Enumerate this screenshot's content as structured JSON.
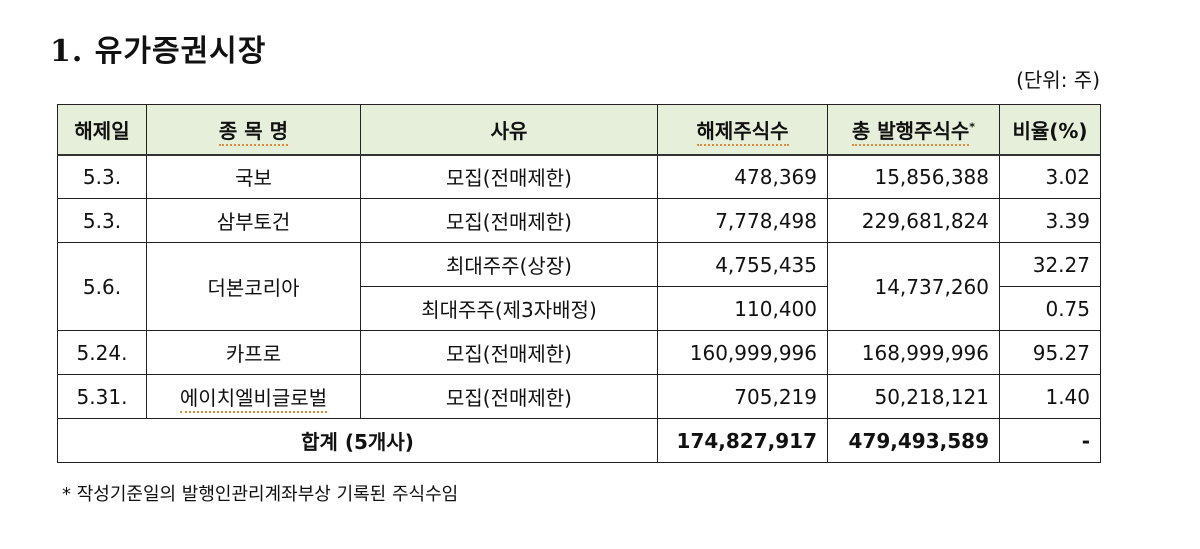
{
  "title": "1. 유가증권시장",
  "unit": "(단위: 주)",
  "headers": {
    "date": "해제일",
    "name": "종 목 명",
    "reason": "사유",
    "released": "해제주식수",
    "total": "총 발행주식수",
    "total_mark": "*",
    "ratio": "비율(%)"
  },
  "rows": [
    {
      "date": "5.3.",
      "name": "국보",
      "reason": "모집(전매제한)",
      "released": "478,369",
      "total": "15,856,388",
      "ratio": "3.02"
    },
    {
      "date": "5.3.",
      "name": "삼부토건",
      "reason": "모집(전매제한)",
      "released": "7,778,498",
      "total": "229,681,824",
      "ratio": "3.39"
    },
    {
      "date": "5.6.",
      "name": "더본코리아",
      "reason": "최대주주(상장)",
      "released": "4,755,435",
      "total": "14,737,260",
      "ratio": "32.27"
    },
    {
      "reason": "최대주주(제3자배정)",
      "released": "110,400",
      "ratio": "0.75"
    },
    {
      "date": "5.24.",
      "name": "카프로",
      "reason": "모집(전매제한)",
      "released": "160,999,996",
      "total": "168,999,996",
      "ratio": "95.27"
    },
    {
      "date": "5.31.",
      "name": "에이치엘비글로벌",
      "reason": "모집(전매제한)",
      "released": "705,219",
      "total": "50,218,121",
      "ratio": "1.40"
    }
  ],
  "total_row": {
    "label": "합계 (5개사)",
    "released": "174,827,917",
    "total": "479,493,589",
    "ratio": "-"
  },
  "footnote": "* 작성기준일의 발행인관리계좌부상 기록된 주식수임"
}
